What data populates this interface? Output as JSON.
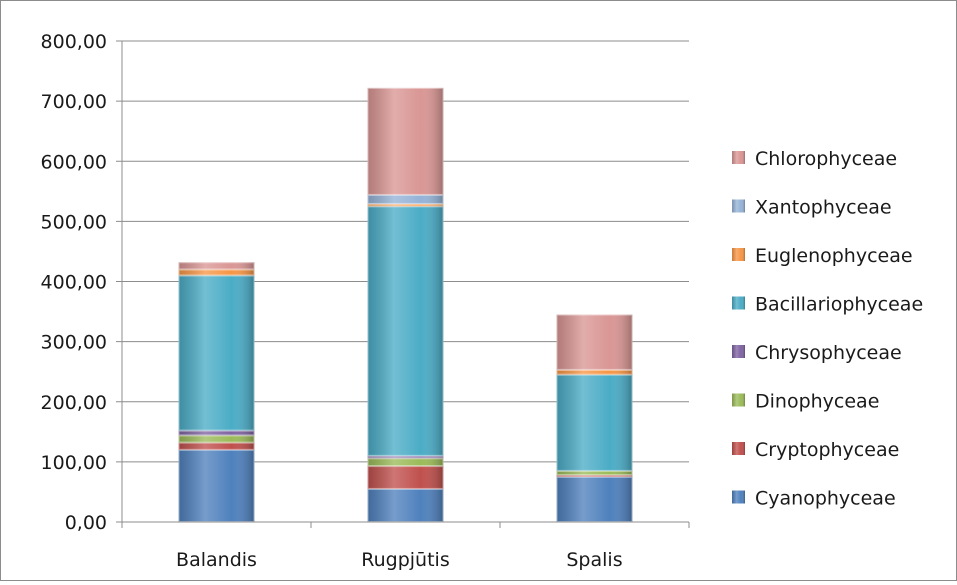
{
  "chart_data": {
    "type": "bar",
    "stacked": true,
    "categories": [
      "Balandis",
      "Rugpjūtis",
      "Spalis"
    ],
    "ylim": [
      0,
      800
    ],
    "y_ticks": [
      "0,00",
      "100,00",
      "200,00",
      "300,00",
      "400,00",
      "500,00",
      "600,00",
      "700,00",
      "800,00"
    ],
    "grid": true,
    "legend_position": "right",
    "series": [
      {
        "name": "Cyanophyceae",
        "color": "#4f81bd",
        "values": [
          120,
          55,
          75
        ]
      },
      {
        "name": "Cryptophyceae",
        "color": "#c0504d",
        "values": [
          12,
          38,
          3
        ]
      },
      {
        "name": "Dinophyceae",
        "color": "#9bbb59",
        "values": [
          12,
          13,
          7
        ]
      },
      {
        "name": "Chrysophyceae",
        "color": "#8064a2",
        "values": [
          8,
          4,
          0
        ]
      },
      {
        "name": "Bacillariophyceae",
        "color": "#4bacc6",
        "values": [
          258,
          415,
          160
        ]
      },
      {
        "name": "Euglenophyceae",
        "color": "#f79646",
        "values": [
          10,
          4,
          8
        ]
      },
      {
        "name": "Xantophyceae",
        "color": "#95b3d7",
        "values": [
          0,
          15,
          0
        ]
      },
      {
        "name": "Chlorophyceae",
        "color": "#d99694",
        "values": [
          12,
          178,
          92
        ]
      }
    ]
  }
}
